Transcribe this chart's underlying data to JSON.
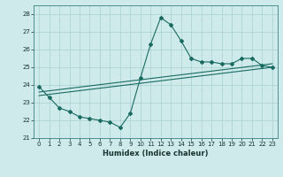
{
  "xlabel": "Humidex (Indice chaleur)",
  "bg_color": "#ceeaea",
  "line_color": "#1a6b62",
  "grid_color": "#aacfcf",
  "xlim": [
    -0.5,
    23.5
  ],
  "ylim": [
    21,
    28.5
  ],
  "yticks": [
    21,
    22,
    23,
    24,
    25,
    26,
    27,
    28
  ],
  "xticks": [
    0,
    1,
    2,
    3,
    4,
    5,
    6,
    7,
    8,
    9,
    10,
    11,
    12,
    13,
    14,
    15,
    16,
    17,
    18,
    19,
    20,
    21,
    22,
    23
  ],
  "series1_x": [
    0,
    1,
    2,
    3,
    4,
    5,
    6,
    7,
    8,
    9,
    10,
    11,
    12,
    13,
    14,
    15,
    16,
    17,
    18,
    19,
    20,
    21,
    22,
    23
  ],
  "series1_y": [
    23.9,
    23.3,
    22.7,
    22.5,
    22.2,
    22.1,
    22.0,
    21.9,
    21.6,
    22.4,
    24.4,
    26.3,
    27.8,
    27.4,
    26.5,
    25.5,
    25.3,
    25.3,
    25.2,
    25.2,
    25.5,
    25.5,
    25.1,
    25.0
  ],
  "series2_x": [
    0,
    23
  ],
  "series2_y": [
    23.6,
    25.2
  ],
  "series3_x": [
    0,
    23
  ],
  "series3_y": [
    23.4,
    25.0
  ]
}
